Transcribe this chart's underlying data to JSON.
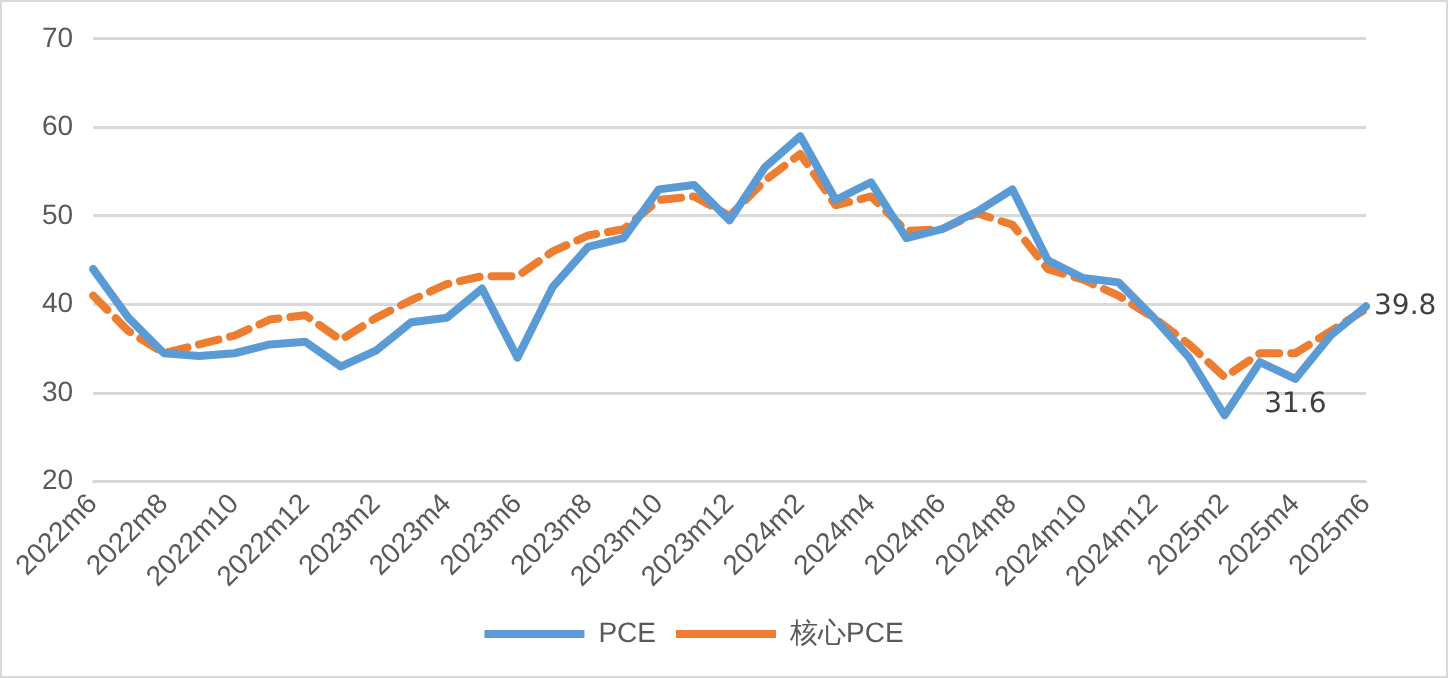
{
  "chart_data": {
    "type": "line",
    "categories": [
      "2022m6",
      null,
      "2022m8",
      null,
      "2022m10",
      null,
      "2022m12",
      null,
      "2023m2",
      null,
      "2023m4",
      null,
      "2023m6",
      null,
      "2023m8",
      null,
      "2023m10",
      null,
      "2023m12",
      null,
      "2024m2",
      null,
      "2024m4",
      null,
      "2024m6",
      null,
      "2024m8",
      null,
      "2024m10",
      null,
      "2024m12",
      null,
      "2025m2",
      null,
      "2025m4",
      null,
      "2025m6"
    ],
    "series": [
      {
        "name": "PCE",
        "color": "#5b9bd5",
        "line_style": "solid",
        "values": [
          44,
          38.5,
          34.5,
          34.2,
          34.5,
          35.5,
          35.8,
          33,
          34.8,
          38,
          38.5,
          41.8,
          34,
          42,
          46.5,
          47.5,
          53,
          53.5,
          49.5,
          55.5,
          59,
          51.8,
          53.8,
          47.5,
          48.5,
          50.5,
          53,
          45,
          43,
          42.5,
          38.5,
          34,
          27.5,
          33.5,
          31.6,
          36.5,
          39.8
        ],
        "value_labels": [
          null,
          null,
          null,
          null,
          null,
          null,
          null,
          null,
          null,
          null,
          null,
          null,
          null,
          null,
          null,
          null,
          null,
          null,
          null,
          null,
          null,
          null,
          null,
          null,
          null,
          null,
          null,
          null,
          null,
          null,
          null,
          null,
          null,
          null,
          "31.6",
          null,
          "39.8"
        ]
      },
      {
        "name": "核心PCE",
        "color": "#ed7d31",
        "line_style": "dashed",
        "values": [
          41,
          37,
          34.5,
          35.5,
          36.5,
          38.3,
          38.8,
          36,
          38.5,
          40.5,
          42.3,
          43.2,
          43.2,
          46,
          47.8,
          48.5,
          51.8,
          52.2,
          50,
          54,
          57,
          51.2,
          52.2,
          48.3,
          48.5,
          50.3,
          49,
          44,
          42.8,
          41,
          38.5,
          35.5,
          31.8,
          34.5,
          34.5,
          37,
          39.5
        ]
      }
    ],
    "ylim": [
      20,
      70
    ],
    "yticks": [
      20,
      30,
      40,
      50,
      60,
      70
    ],
    "grid": "y",
    "legend": "bottom",
    "marker": "none"
  }
}
